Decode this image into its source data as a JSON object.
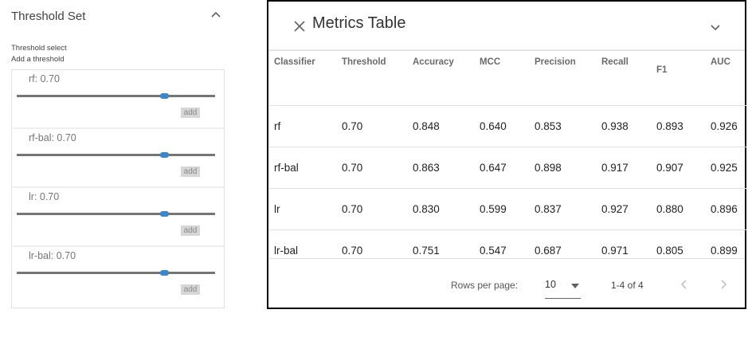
{
  "threshold_set": {
    "title": "Threshold Set",
    "subtitle": "Threshold select",
    "hint": "Add a threshold",
    "sliders": [
      {
        "label": "rf: 0.70",
        "value": 0.7,
        "add_label": "add"
      },
      {
        "label": "rf-bal: 0.70",
        "value": 0.7,
        "add_label": "add"
      },
      {
        "label": "lr: 0.70",
        "value": 0.7,
        "add_label": "add"
      },
      {
        "label": "lr-bal: 0.70",
        "value": 0.7,
        "add_label": "add"
      }
    ]
  },
  "metrics_table": {
    "title": "Metrics Table",
    "columns": [
      "Classifier",
      "Threshold",
      "Accuracy",
      "MCC",
      "Precision",
      "Recall",
      "F1",
      "AUC"
    ],
    "rows": [
      [
        "rf",
        "0.70",
        "0.848",
        "0.640",
        "0.853",
        "0.938",
        "0.893",
        "0.926"
      ],
      [
        "rf-bal",
        "0.70",
        "0.863",
        "0.647",
        "0.898",
        "0.917",
        "0.907",
        "0.925"
      ],
      [
        "lr",
        "0.70",
        "0.830",
        "0.599",
        "0.837",
        "0.927",
        "0.880",
        "0.896"
      ],
      [
        "lr-bal",
        "0.70",
        "0.751",
        "0.547",
        "0.687",
        "0.971",
        "0.805",
        "0.899"
      ]
    ],
    "pagination": {
      "rows_per_page_label": "Rows per page:",
      "rows_per_page_value": "10",
      "range_text": "1-4 of 4"
    }
  },
  "icons": {
    "collapse": "chevron-up-icon",
    "close": "close-icon",
    "expand": "chevron-down-icon",
    "dropdown": "caret-down-icon",
    "prev": "chevron-left-icon",
    "next": "chevron-right-icon"
  },
  "colors": {
    "slider_track": "#757575",
    "slider_thumb": "#3f86c6",
    "add_button_bg": "#d6d6d6"
  }
}
